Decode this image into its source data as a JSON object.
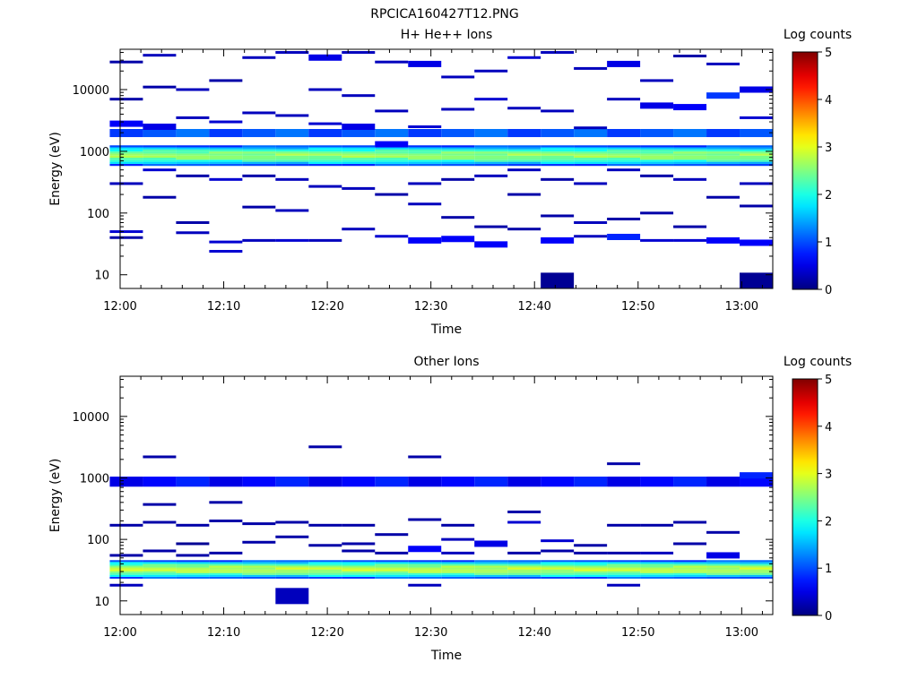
{
  "figure_title": "RPCICA160427T12.PNG",
  "colorbar_range": [
    0,
    5
  ],
  "chart_data": [
    {
      "type": "heatmap",
      "title": "H+ He++ Ions",
      "xlabel": "Time",
      "ylabel": "Energy (eV)",
      "x_ticks": [
        "12:00",
        "12:10",
        "12:20",
        "12:30",
        "12:40",
        "12:50",
        "13:00"
      ],
      "y_ticks": [
        "10",
        "100",
        "1000",
        "10000"
      ],
      "y_scale": "log",
      "y_range_eV": [
        6,
        45000
      ],
      "x_range_min": [
        0,
        63
      ],
      "colorbar_label": "Log counts",
      "colorbar_ticks": [
        "0",
        "1",
        "2",
        "3",
        "4",
        "5"
      ],
      "time_bins_min": [
        2.2,
        5.4,
        8.6,
        11.8,
        15.0,
        18.2,
        21.4,
        24.6,
        27.8,
        31.0,
        34.2,
        37.4,
        40.6,
        43.8,
        47.0,
        50.2,
        53.4,
        56.6,
        59.8,
        63.0
      ],
      "band": {
        "low_eV": 580,
        "high_eV": 1250,
        "peak_log_counts": 2.6
      },
      "band_halo": [
        {
          "low_eV": 1700,
          "high_eV": 2300,
          "log_counts": 0.9
        }
      ],
      "sparse_points": [
        {
          "t": 0,
          "e": 2800,
          "c": 0.6
        },
        {
          "t": 0,
          "e": 300,
          "c": 0.3
        },
        {
          "t": 0,
          "e": 50,
          "c": 0.4
        },
        {
          "t": 0,
          "e": 40,
          "c": 0.2
        },
        {
          "t": 0,
          "e": 7000,
          "c": 0.2
        },
        {
          "t": 0,
          "e": 28000,
          "c": 0.2
        },
        {
          "t": 1,
          "e": 2500,
          "c": 0.5
        },
        {
          "t": 1,
          "e": 500,
          "c": 0.4
        },
        {
          "t": 1,
          "e": 180,
          "c": 0.2
        },
        {
          "t": 1,
          "e": 11000,
          "c": 0.2
        },
        {
          "t": 1,
          "e": 36000,
          "c": 0.3
        },
        {
          "t": 2,
          "e": 10000,
          "c": 0.3
        },
        {
          "t": 2,
          "e": 3500,
          "c": 0.3
        },
        {
          "t": 2,
          "e": 400,
          "c": 0.2
        },
        {
          "t": 2,
          "e": 70,
          "c": 0.2
        },
        {
          "t": 2,
          "e": 48,
          "c": 0.3
        },
        {
          "t": 3,
          "e": 14000,
          "c": 0.2
        },
        {
          "t": 3,
          "e": 3000,
          "c": 0.4
        },
        {
          "t": 3,
          "e": 350,
          "c": 0.4
        },
        {
          "t": 3,
          "e": 34,
          "c": 0.4
        },
        {
          "t": 3,
          "e": 24,
          "c": 0.4
        },
        {
          "t": 4,
          "e": 33000,
          "c": 0.3
        },
        {
          "t": 4,
          "e": 4200,
          "c": 0.3
        },
        {
          "t": 4,
          "e": 400,
          "c": 0.2
        },
        {
          "t": 4,
          "e": 125,
          "c": 0.2
        },
        {
          "t": 4,
          "e": 36,
          "c": 0.3
        },
        {
          "t": 5,
          "e": 40000,
          "c": 0.3
        },
        {
          "t": 5,
          "e": 3800,
          "c": 0.3
        },
        {
          "t": 5,
          "e": 350,
          "c": 0.3
        },
        {
          "t": 5,
          "e": 110,
          "c": 0.3
        },
        {
          "t": 5,
          "e": 36,
          "c": 0.4
        },
        {
          "t": 6,
          "e": 33000,
          "c": 0.5
        },
        {
          "t": 6,
          "e": 10000,
          "c": 0.3
        },
        {
          "t": 6,
          "e": 2800,
          "c": 0.4
        },
        {
          "t": 6,
          "e": 270,
          "c": 0.3
        },
        {
          "t": 6,
          "e": 36,
          "c": 0.3
        },
        {
          "t": 7,
          "e": 40000,
          "c": 0.3
        },
        {
          "t": 7,
          "e": 8000,
          "c": 0.3
        },
        {
          "t": 7,
          "e": 2500,
          "c": 0.5
        },
        {
          "t": 7,
          "e": 250,
          "c": 0.3
        },
        {
          "t": 7,
          "e": 55,
          "c": 0.3
        },
        {
          "t": 8,
          "e": 28000,
          "c": 0.3
        },
        {
          "t": 8,
          "e": 4500,
          "c": 0.3
        },
        {
          "t": 8,
          "e": 1300,
          "c": 0.6
        },
        {
          "t": 8,
          "e": 200,
          "c": 0.2
        },
        {
          "t": 8,
          "e": 42,
          "c": 0.4
        },
        {
          "t": 9,
          "e": 26000,
          "c": 0.5
        },
        {
          "t": 9,
          "e": 2500,
          "c": 0.4
        },
        {
          "t": 9,
          "e": 300,
          "c": 0.3
        },
        {
          "t": 9,
          "e": 140,
          "c": 0.3
        },
        {
          "t": 9,
          "e": 36,
          "c": 0.6
        },
        {
          "t": 10,
          "e": 16000,
          "c": 0.3
        },
        {
          "t": 10,
          "e": 4800,
          "c": 0.3
        },
        {
          "t": 10,
          "e": 350,
          "c": 0.2
        },
        {
          "t": 10,
          "e": 85,
          "c": 0.2
        },
        {
          "t": 10,
          "e": 38,
          "c": 0.6
        },
        {
          "t": 11,
          "e": 20000,
          "c": 0.3
        },
        {
          "t": 11,
          "e": 7000,
          "c": 0.4
        },
        {
          "t": 11,
          "e": 400,
          "c": 0.3
        },
        {
          "t": 11,
          "e": 60,
          "c": 0.2
        },
        {
          "t": 11,
          "e": 31,
          "c": 0.6
        },
        {
          "t": 12,
          "e": 33000,
          "c": 0.4
        },
        {
          "t": 12,
          "e": 5000,
          "c": 0.3
        },
        {
          "t": 12,
          "e": 500,
          "c": 0.3
        },
        {
          "t": 12,
          "e": 200,
          "c": 0.2
        },
        {
          "t": 12,
          "e": 55,
          "c": 0.2
        },
        {
          "t": 13,
          "e": 40000,
          "c": 0.3
        },
        {
          "t": 13,
          "e": 4500,
          "c": 0.3
        },
        {
          "t": 13,
          "e": 350,
          "c": 0.2
        },
        {
          "t": 13,
          "e": 90,
          "c": 0.2
        },
        {
          "t": 13,
          "e": 36,
          "c": 0.6
        },
        {
          "t": 13,
          "e": 8,
          "c": 0.1
        },
        {
          "t": 14,
          "e": 22000,
          "c": 0.3
        },
        {
          "t": 14,
          "e": 2400,
          "c": 0.3
        },
        {
          "t": 14,
          "e": 300,
          "c": 0.3
        },
        {
          "t": 14,
          "e": 70,
          "c": 0.3
        },
        {
          "t": 14,
          "e": 42,
          "c": 0.3
        },
        {
          "t": 15,
          "e": 26000,
          "c": 0.5
        },
        {
          "t": 15,
          "e": 7000,
          "c": 0.3
        },
        {
          "t": 15,
          "e": 500,
          "c": 0.3
        },
        {
          "t": 15,
          "e": 80,
          "c": 0.2
        },
        {
          "t": 15,
          "e": 41,
          "c": 0.8
        },
        {
          "t": 16,
          "e": 14000,
          "c": 0.3
        },
        {
          "t": 16,
          "e": 5500,
          "c": 0.5
        },
        {
          "t": 16,
          "e": 400,
          "c": 0.2
        },
        {
          "t": 16,
          "e": 100,
          "c": 0.2
        },
        {
          "t": 16,
          "e": 36,
          "c": 0.4
        },
        {
          "t": 17,
          "e": 35000,
          "c": 0.2
        },
        {
          "t": 17,
          "e": 5200,
          "c": 0.6
        },
        {
          "t": 17,
          "e": 350,
          "c": 0.3
        },
        {
          "t": 17,
          "e": 60,
          "c": 0.2
        },
        {
          "t": 17,
          "e": 36,
          "c": 0.4
        },
        {
          "t": 18,
          "e": 26000,
          "c": 0.3
        },
        {
          "t": 18,
          "e": 8000,
          "c": 0.9
        },
        {
          "t": 18,
          "e": 180,
          "c": 0.2
        },
        {
          "t": 18,
          "e": 36,
          "c": 0.6
        },
        {
          "t": 19,
          "e": 10000,
          "c": 0.5
        },
        {
          "t": 19,
          "e": 3500,
          "c": 0.4
        },
        {
          "t": 19,
          "e": 300,
          "c": 0.3
        },
        {
          "t": 19,
          "e": 130,
          "c": 0.2
        },
        {
          "t": 19,
          "e": 33,
          "c": 0.6
        },
        {
          "t": 19,
          "e": 8,
          "c": 0.1
        }
      ]
    },
    {
      "type": "heatmap",
      "title": "Other Ions",
      "xlabel": "Time",
      "ylabel": "Energy (eV)",
      "x_ticks": [
        "12:00",
        "12:10",
        "12:20",
        "12:30",
        "12:40",
        "12:50",
        "13:00"
      ],
      "y_ticks": [
        "10",
        "100",
        "1000",
        "10000"
      ],
      "y_scale": "log",
      "y_range_eV": [
        6,
        45000
      ],
      "x_range_min": [
        0,
        63
      ],
      "colorbar_label": "Log counts",
      "colorbar_ticks": [
        "0",
        "1",
        "2",
        "3",
        "4",
        "5"
      ],
      "time_bins_min": [
        2.2,
        5.4,
        8.6,
        11.8,
        15.0,
        18.2,
        21.4,
        24.6,
        27.8,
        31.0,
        34.2,
        37.4,
        40.6,
        43.8,
        47.0,
        50.2,
        53.4,
        56.6,
        59.8,
        63.0
      ],
      "band": {
        "low_eV": 23,
        "high_eV": 46,
        "peak_log_counts": 2.8
      },
      "band_halo": [
        {
          "low_eV": 720,
          "high_eV": 1050,
          "log_counts": 0.5
        }
      ],
      "sparse_points": [
        {
          "t": 0,
          "e": 170,
          "c": 0.2
        },
        {
          "t": 0,
          "e": 55,
          "c": 0.2
        },
        {
          "t": 0,
          "e": 18,
          "c": 0.3
        },
        {
          "t": 1,
          "e": 2200,
          "c": 0.2
        },
        {
          "t": 1,
          "e": 370,
          "c": 0.2
        },
        {
          "t": 1,
          "e": 190,
          "c": 0.2
        },
        {
          "t": 1,
          "e": 65,
          "c": 0.2
        },
        {
          "t": 2,
          "e": 170,
          "c": 0.2
        },
        {
          "t": 2,
          "e": 85,
          "c": 0.1
        },
        {
          "t": 2,
          "e": 55,
          "c": 0.2
        },
        {
          "t": 3,
          "e": 400,
          "c": 0.2
        },
        {
          "t": 3,
          "e": 200,
          "c": 0.2
        },
        {
          "t": 3,
          "e": 60,
          "c": 0.2
        },
        {
          "t": 4,
          "e": 180,
          "c": 0.2
        },
        {
          "t": 4,
          "e": 90,
          "c": 0.2
        },
        {
          "t": 5,
          "e": 190,
          "c": 0.2
        },
        {
          "t": 5,
          "e": 110,
          "c": 0.2
        },
        {
          "t": 5,
          "e": 12,
          "c": 0.3
        },
        {
          "t": 6,
          "e": 3200,
          "c": 0.2
        },
        {
          "t": 6,
          "e": 170,
          "c": 0.2
        },
        {
          "t": 6,
          "e": 80,
          "c": 0.2
        },
        {
          "t": 7,
          "e": 170,
          "c": 0.2
        },
        {
          "t": 7,
          "e": 85,
          "c": 0.2
        },
        {
          "t": 7,
          "e": 65,
          "c": 0.2
        },
        {
          "t": 8,
          "e": 120,
          "c": 0.2
        },
        {
          "t": 8,
          "e": 60,
          "c": 0.2
        },
        {
          "t": 9,
          "e": 2200,
          "c": 0.2
        },
        {
          "t": 9,
          "e": 210,
          "c": 0.2
        },
        {
          "t": 9,
          "e": 70,
          "c": 0.6
        },
        {
          "t": 9,
          "e": 18,
          "c": 0.3
        },
        {
          "t": 10,
          "e": 170,
          "c": 0.2
        },
        {
          "t": 10,
          "e": 100,
          "c": 0.3
        },
        {
          "t": 10,
          "e": 60,
          "c": 0.3
        },
        {
          "t": 11,
          "e": 85,
          "c": 0.5
        },
        {
          "t": 12,
          "e": 280,
          "c": 0.2
        },
        {
          "t": 12,
          "e": 190,
          "c": 0.4
        },
        {
          "t": 12,
          "e": 60,
          "c": 0.2
        },
        {
          "t": 13,
          "e": 95,
          "c": 0.4
        },
        {
          "t": 13,
          "e": 65,
          "c": 0.2
        },
        {
          "t": 14,
          "e": 80,
          "c": 0.2
        },
        {
          "t": 14,
          "e": 60,
          "c": 0.2
        },
        {
          "t": 15,
          "e": 1700,
          "c": 0.2
        },
        {
          "t": 15,
          "e": 170,
          "c": 0.2
        },
        {
          "t": 15,
          "e": 60,
          "c": 0.2
        },
        {
          "t": 15,
          "e": 18,
          "c": 0.3
        },
        {
          "t": 16,
          "e": 170,
          "c": 0.2
        },
        {
          "t": 16,
          "e": 60,
          "c": 0.3
        },
        {
          "t": 17,
          "e": 190,
          "c": 0.2
        },
        {
          "t": 17,
          "e": 85,
          "c": 0.2
        },
        {
          "t": 18,
          "e": 130,
          "c": 0.2
        },
        {
          "t": 18,
          "e": 55,
          "c": 0.5
        },
        {
          "t": 19,
          "e": 1100,
          "c": 0.8
        }
      ]
    }
  ]
}
